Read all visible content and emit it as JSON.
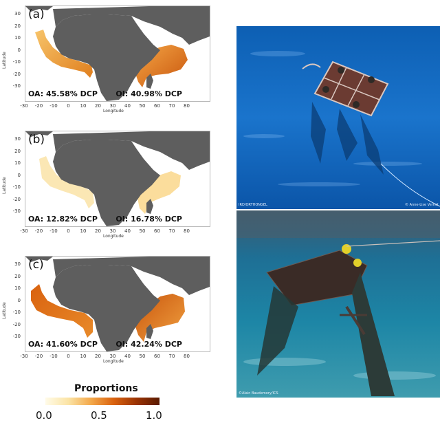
{
  "panels": [
    {
      "id": "a",
      "label": "(a)",
      "oa_text": "OA: 45.58% DCP",
      "oi_text": "OI: 40.98% DCP"
    },
    {
      "id": "b",
      "label": "(b)",
      "oa_text": "OA: 12.82% DCP",
      "oi_text": "OI: 16.78% DCP"
    },
    {
      "id": "c",
      "label": "(c)",
      "oa_text": "OA: 41.60% DCP",
      "oi_text": "OI: 42.24% DCP"
    }
  ],
  "axes": {
    "ylabel": "Latitude",
    "xlabel": "Longitude",
    "yticks": [
      "30",
      "20",
      "10",
      "0",
      "-10",
      "-20",
      "-30"
    ],
    "xticks": [
      "-30",
      "-20",
      "-10",
      "0",
      "10",
      "20",
      "30",
      "40",
      "50",
      "60",
      "70",
      "80"
    ]
  },
  "legend": {
    "title": "Proportions",
    "ticks": [
      "0.0",
      "0.5",
      "1.0"
    ]
  },
  "photos": {
    "top_credit_left": "IRD/ORTHONGEL",
    "top_credit_right": "© Anne-Lise Vernet",
    "bottom_credit_left": "©Alain Baudemory/ICS"
  },
  "colors": {
    "land": "#5e5e5e",
    "ocean": "#ffffff",
    "scale_low": "#fffbe8",
    "scale_mid": "#f3a84a",
    "scale_high": "#5a1a02"
  }
}
